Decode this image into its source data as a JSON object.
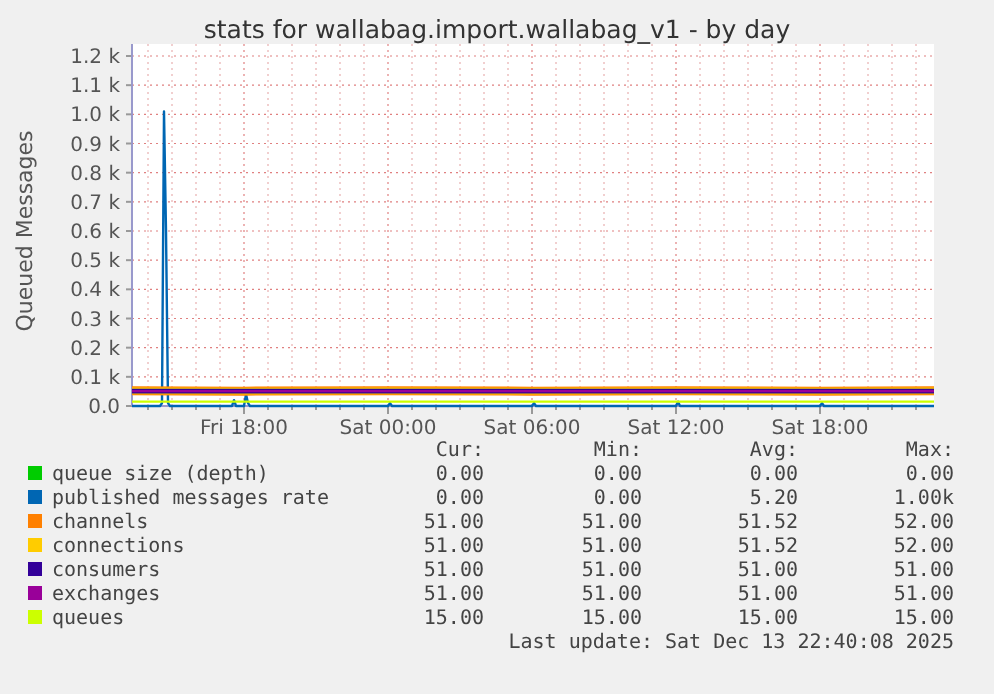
{
  "chart_data": {
    "type": "line",
    "title": "stats for wallabag.import.wallabag_v1 - by day",
    "ylabel": "Queued Messages",
    "xlim": [
      "2025-12-12T13:20",
      "2025-12-13T22:45"
    ],
    "ylim": [
      0,
      1200
    ],
    "xticks": [
      {
        "value": "2025-12-12T14:00",
        "label": null
      },
      {
        "value": "2025-12-12T15:00",
        "label": null
      },
      {
        "value": "2025-12-12T16:00",
        "label": null
      },
      {
        "value": "2025-12-12T17:00",
        "label": null
      },
      {
        "value": "2025-12-12T18:00",
        "label": "Fri 18:00"
      },
      {
        "value": "2025-12-12T19:00",
        "label": null
      },
      {
        "value": "2025-12-12T20:00",
        "label": null
      },
      {
        "value": "2025-12-12T21:00",
        "label": null
      },
      {
        "value": "2025-12-12T22:00",
        "label": null
      },
      {
        "value": "2025-12-12T23:00",
        "label": null
      },
      {
        "value": "2025-12-13T00:00",
        "label": "Sat 00:00"
      },
      {
        "value": "2025-12-13T01:00",
        "label": null
      },
      {
        "value": "2025-12-13T02:00",
        "label": null
      },
      {
        "value": "2025-12-13T03:00",
        "label": null
      },
      {
        "value": "2025-12-13T04:00",
        "label": null
      },
      {
        "value": "2025-12-13T05:00",
        "label": null
      },
      {
        "value": "2025-12-13T06:00",
        "label": "Sat 06:00"
      },
      {
        "value": "2025-12-13T07:00",
        "label": null
      },
      {
        "value": "2025-12-13T08:00",
        "label": null
      },
      {
        "value": "2025-12-13T09:00",
        "label": null
      },
      {
        "value": "2025-12-13T10:00",
        "label": null
      },
      {
        "value": "2025-12-13T11:00",
        "label": null
      },
      {
        "value": "2025-12-13T12:00",
        "label": "Sat 12:00"
      },
      {
        "value": "2025-12-13T13:00",
        "label": null
      },
      {
        "value": "2025-12-13T14:00",
        "label": null
      },
      {
        "value": "2025-12-13T15:00",
        "label": null
      },
      {
        "value": "2025-12-13T16:00",
        "label": null
      },
      {
        "value": "2025-12-13T17:00",
        "label": null
      },
      {
        "value": "2025-12-13T18:00",
        "label": "Sat 18:00"
      },
      {
        "value": "2025-12-13T19:00",
        "label": null
      },
      {
        "value": "2025-12-13T20:00",
        "label": null
      },
      {
        "value": "2025-12-13T21:00",
        "label": null
      },
      {
        "value": "2025-12-13T22:00",
        "label": null
      }
    ],
    "yticks": [
      {
        "value": 0,
        "label": "0.0"
      },
      {
        "value": 100,
        "label": "0.1 k"
      },
      {
        "value": 200,
        "label": "0.2 k"
      },
      {
        "value": 300,
        "label": "0.3 k"
      },
      {
        "value": 400,
        "label": "0.4 k"
      },
      {
        "value": 500,
        "label": "0.5 k"
      },
      {
        "value": 600,
        "label": "0.6 k"
      },
      {
        "value": 700,
        "label": "0.7 k"
      },
      {
        "value": 800,
        "label": "0.8 k"
      },
      {
        "value": 900,
        "label": "0.9 k"
      },
      {
        "value": 1000,
        "label": "1.0 k"
      },
      {
        "value": 1100,
        "label": "1.1 k"
      },
      {
        "value": 1200,
        "label": "1.2 k"
      }
    ],
    "grid": true,
    "legend": "bottom",
    "marker": "none",
    "line_style": "solid",
    "series": [
      {
        "name": "queue size (depth)",
        "color": "#00cc00",
        "values": [
          null
        ]
      },
      {
        "name": "published messages rate",
        "color": "#0066b3",
        "x": [
          "2025-12-12T13:20",
          "2025-12-12T14:30",
          "2025-12-12T14:35",
          "2025-12-12T14:40",
          "2025-12-12T14:45",
          "2025-12-12T14:50",
          "2025-12-12T14:55",
          "2025-12-12T17:30",
          "2025-12-12T17:35",
          "2025-12-12T17:40",
          "2025-12-12T18:00",
          "2025-12-12T18:05",
          "2025-12-12T18:10",
          "2025-12-12T18:15",
          "2025-12-13T00:00",
          "2025-12-13T00:05",
          "2025-12-13T00:10",
          "2025-12-13T06:00",
          "2025-12-13T06:05",
          "2025-12-13T06:10",
          "2025-12-13T12:00",
          "2025-12-13T12:05",
          "2025-12-13T12:10",
          "2025-12-13T18:00",
          "2025-12-13T18:05",
          "2025-12-13T18:10",
          "2025-12-13T22:45"
        ],
        "values": [
          0,
          0,
          10,
          1010,
          600,
          10,
          0,
          0,
          20,
          0,
          0,
          40,
          10,
          0,
          0,
          10,
          0,
          0,
          10,
          0,
          0,
          15,
          0,
          0,
          10,
          0,
          0
        ]
      },
      {
        "name": "channels",
        "color": "#ff8000",
        "x": [
          "2025-12-12T13:20",
          "2025-12-12T18:00",
          "2025-12-13T00:00",
          "2025-12-13T06:00",
          "2025-12-13T12:00",
          "2025-12-13T18:00",
          "2025-12-13T22:45"
        ],
        "values": [
          52,
          51,
          52,
          51,
          52,
          51,
          52
        ]
      },
      {
        "name": "connections",
        "color": "#ffcc00",
        "x": [
          "2025-12-12T13:20",
          "2025-12-12T18:00",
          "2025-12-13T00:00",
          "2025-12-13T06:00",
          "2025-12-13T12:00",
          "2025-12-13T18:00",
          "2025-12-13T22:45"
        ],
        "values": [
          52,
          51,
          52,
          51,
          52,
          51,
          52
        ]
      },
      {
        "name": "consumers",
        "color": "#330099",
        "x": [
          "2025-12-12T13:20",
          "2025-12-13T22:45"
        ],
        "values": [
          51,
          51
        ]
      },
      {
        "name": "exchanges",
        "color": "#990099",
        "x": [
          "2025-12-12T13:20",
          "2025-12-13T22:45"
        ],
        "values": [
          51,
          51
        ]
      },
      {
        "name": "queues",
        "color": "#ccff00",
        "x": [
          "2025-12-12T13:20",
          "2025-12-13T22:45"
        ],
        "values": [
          15,
          15
        ]
      }
    ],
    "annotations": [
      "Cur:",
      "Min:",
      "Avg:",
      "Max:",
      "0.00",
      "0.00",
      "0.00",
      "0.00",
      "0.00",
      "0.00",
      "5.20",
      "1.00k",
      "51.00",
      "51.00",
      "51.52",
      "52.00",
      "51.00",
      "51.00",
      "51.52",
      "52.00",
      "51.00",
      "51.00",
      "51.00",
      "51.00",
      "51.00",
      "51.00",
      "51.00",
      "51.00",
      "15.00",
      "15.00",
      "15.00",
      "15.00",
      "Last update: Sat Dec 13 22:40:08 2025"
    ]
  }
}
